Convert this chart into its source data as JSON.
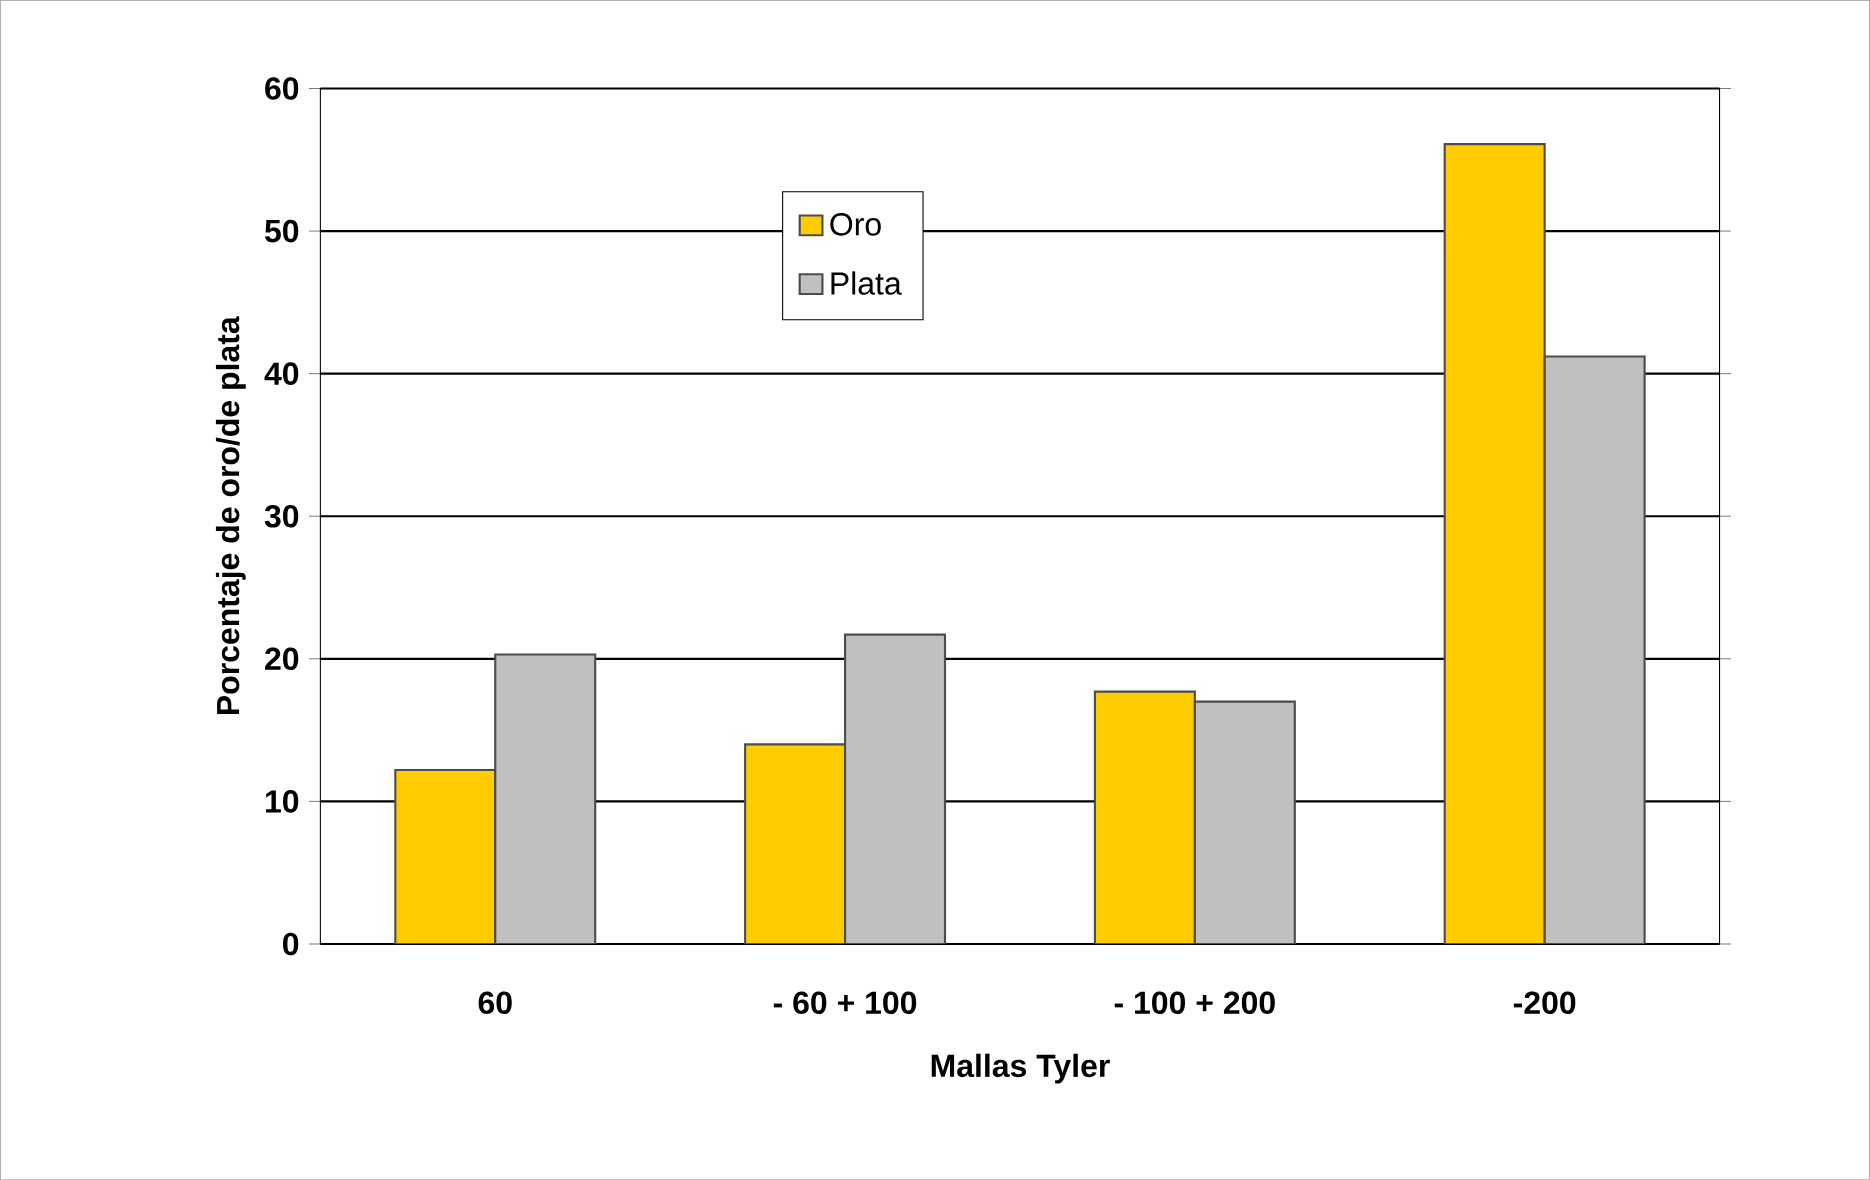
{
  "chart_data": {
    "type": "bar",
    "xlabel": "Mallas Tyler",
    "ylabel": "Porcentaje de oro/de plata",
    "categories": [
      "60",
      "- 60 + 100",
      "- 100 + 200",
      "-200"
    ],
    "series": [
      {
        "name": "Oro",
        "color": "#ffcc00",
        "values": [
          12.2,
          14.0,
          17.7,
          56.1
        ]
      },
      {
        "name": "Plata",
        "color": "#c0c0c0",
        "values": [
          20.3,
          21.7,
          17.0,
          41.2
        ]
      }
    ],
    "ylim": [
      0,
      60
    ],
    "yticks": [
      0,
      10,
      20,
      30,
      40,
      50,
      60
    ],
    "grid": "y",
    "legend": "top left"
  }
}
